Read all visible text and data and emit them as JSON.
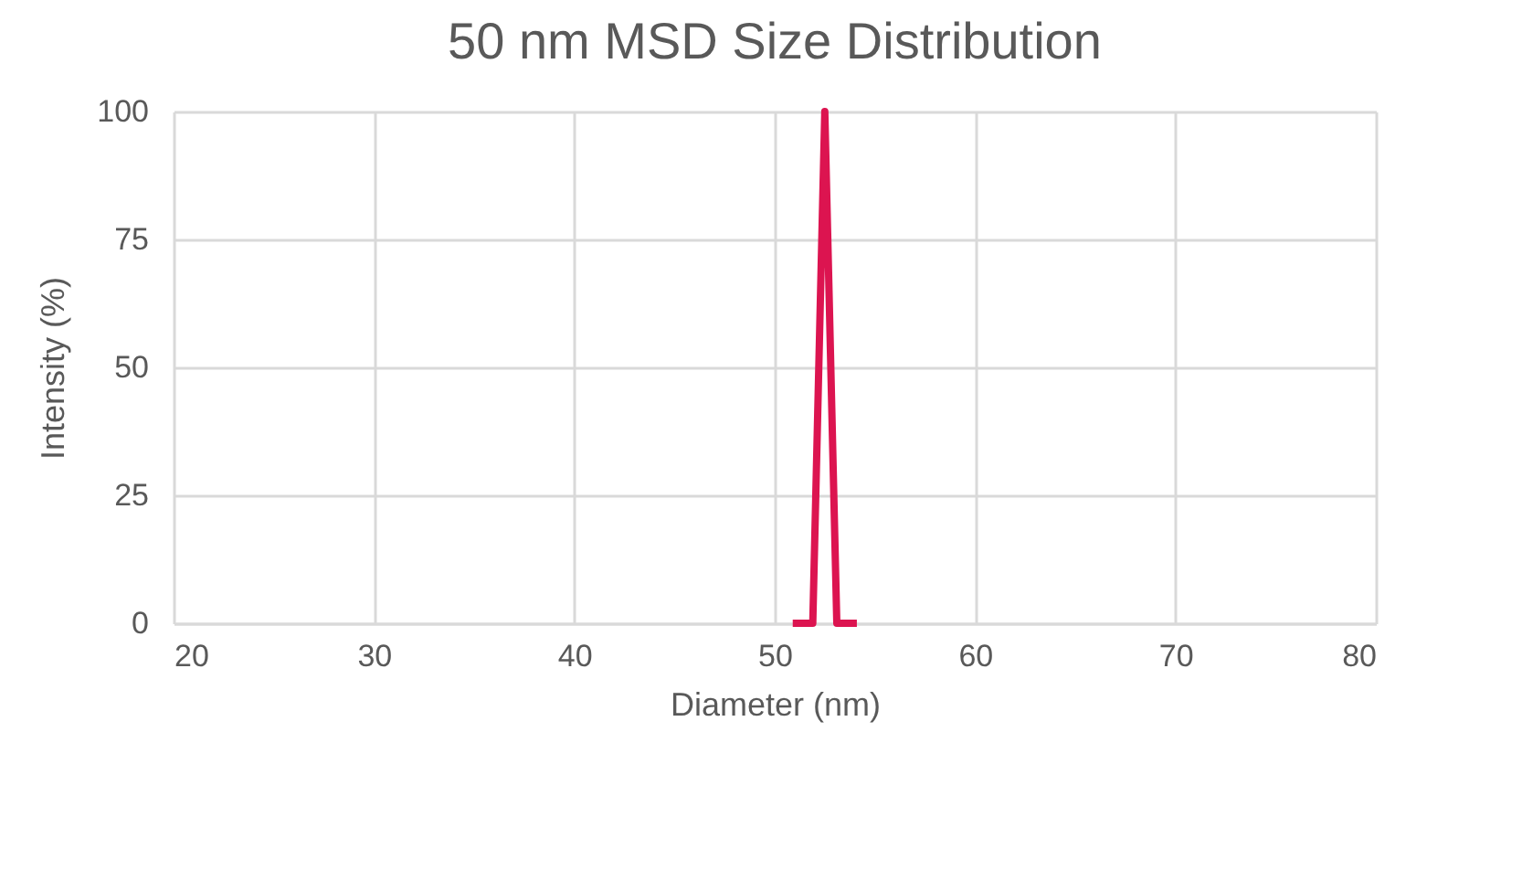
{
  "chart_data": {
    "type": "line",
    "title": "50 nm MSD Size Distribution",
    "xlabel": "Diameter (nm)",
    "ylabel": "Intensity (%)",
    "x": [
      50.9,
      51.9,
      52.5,
      53.1,
      54.1
    ],
    "series": [
      {
        "color": "#dc1450",
        "values": [
          0,
          0,
          100,
          0,
          0
        ]
      }
    ],
    "xlim": [
      20,
      80
    ],
    "xticks": [
      20,
      30,
      40,
      50,
      60,
      70,
      80
    ],
    "ylim": [
      0,
      100
    ],
    "yticks": [
      0,
      25,
      50,
      75,
      100
    ],
    "grid": true,
    "legend": false,
    "marker": "none",
    "line_style": "solid"
  }
}
